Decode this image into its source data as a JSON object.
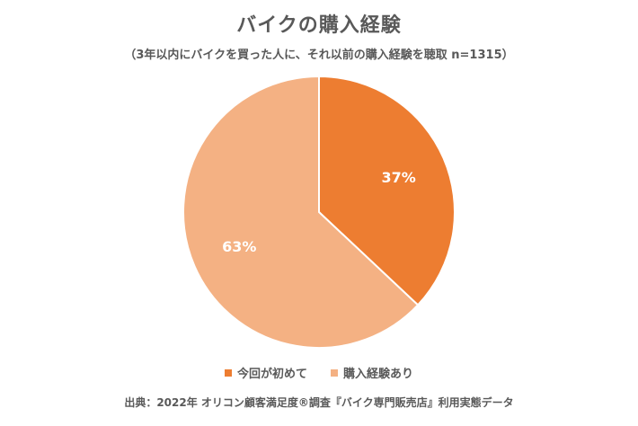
{
  "chart_data": {
    "type": "pie",
    "title": "バイクの購入経験",
    "subtitle": "（3年以内にバイクを買った人に、それ以前の購入経験を聴取 n=1315）",
    "slices": [
      {
        "name": "今回が初めて",
        "value": 37,
        "label": "37%",
        "color": "#ed7d31"
      },
      {
        "name": "購入経験あり",
        "value": 63,
        "label": "63%",
        "color": "#f4b183"
      }
    ],
    "start_angle": "12 o'clock, clockwise",
    "legend_position": "bottom",
    "source": "出典：2022年 オリコン顧客満足度®調査『バイク専門販売店』利用実態データ"
  }
}
